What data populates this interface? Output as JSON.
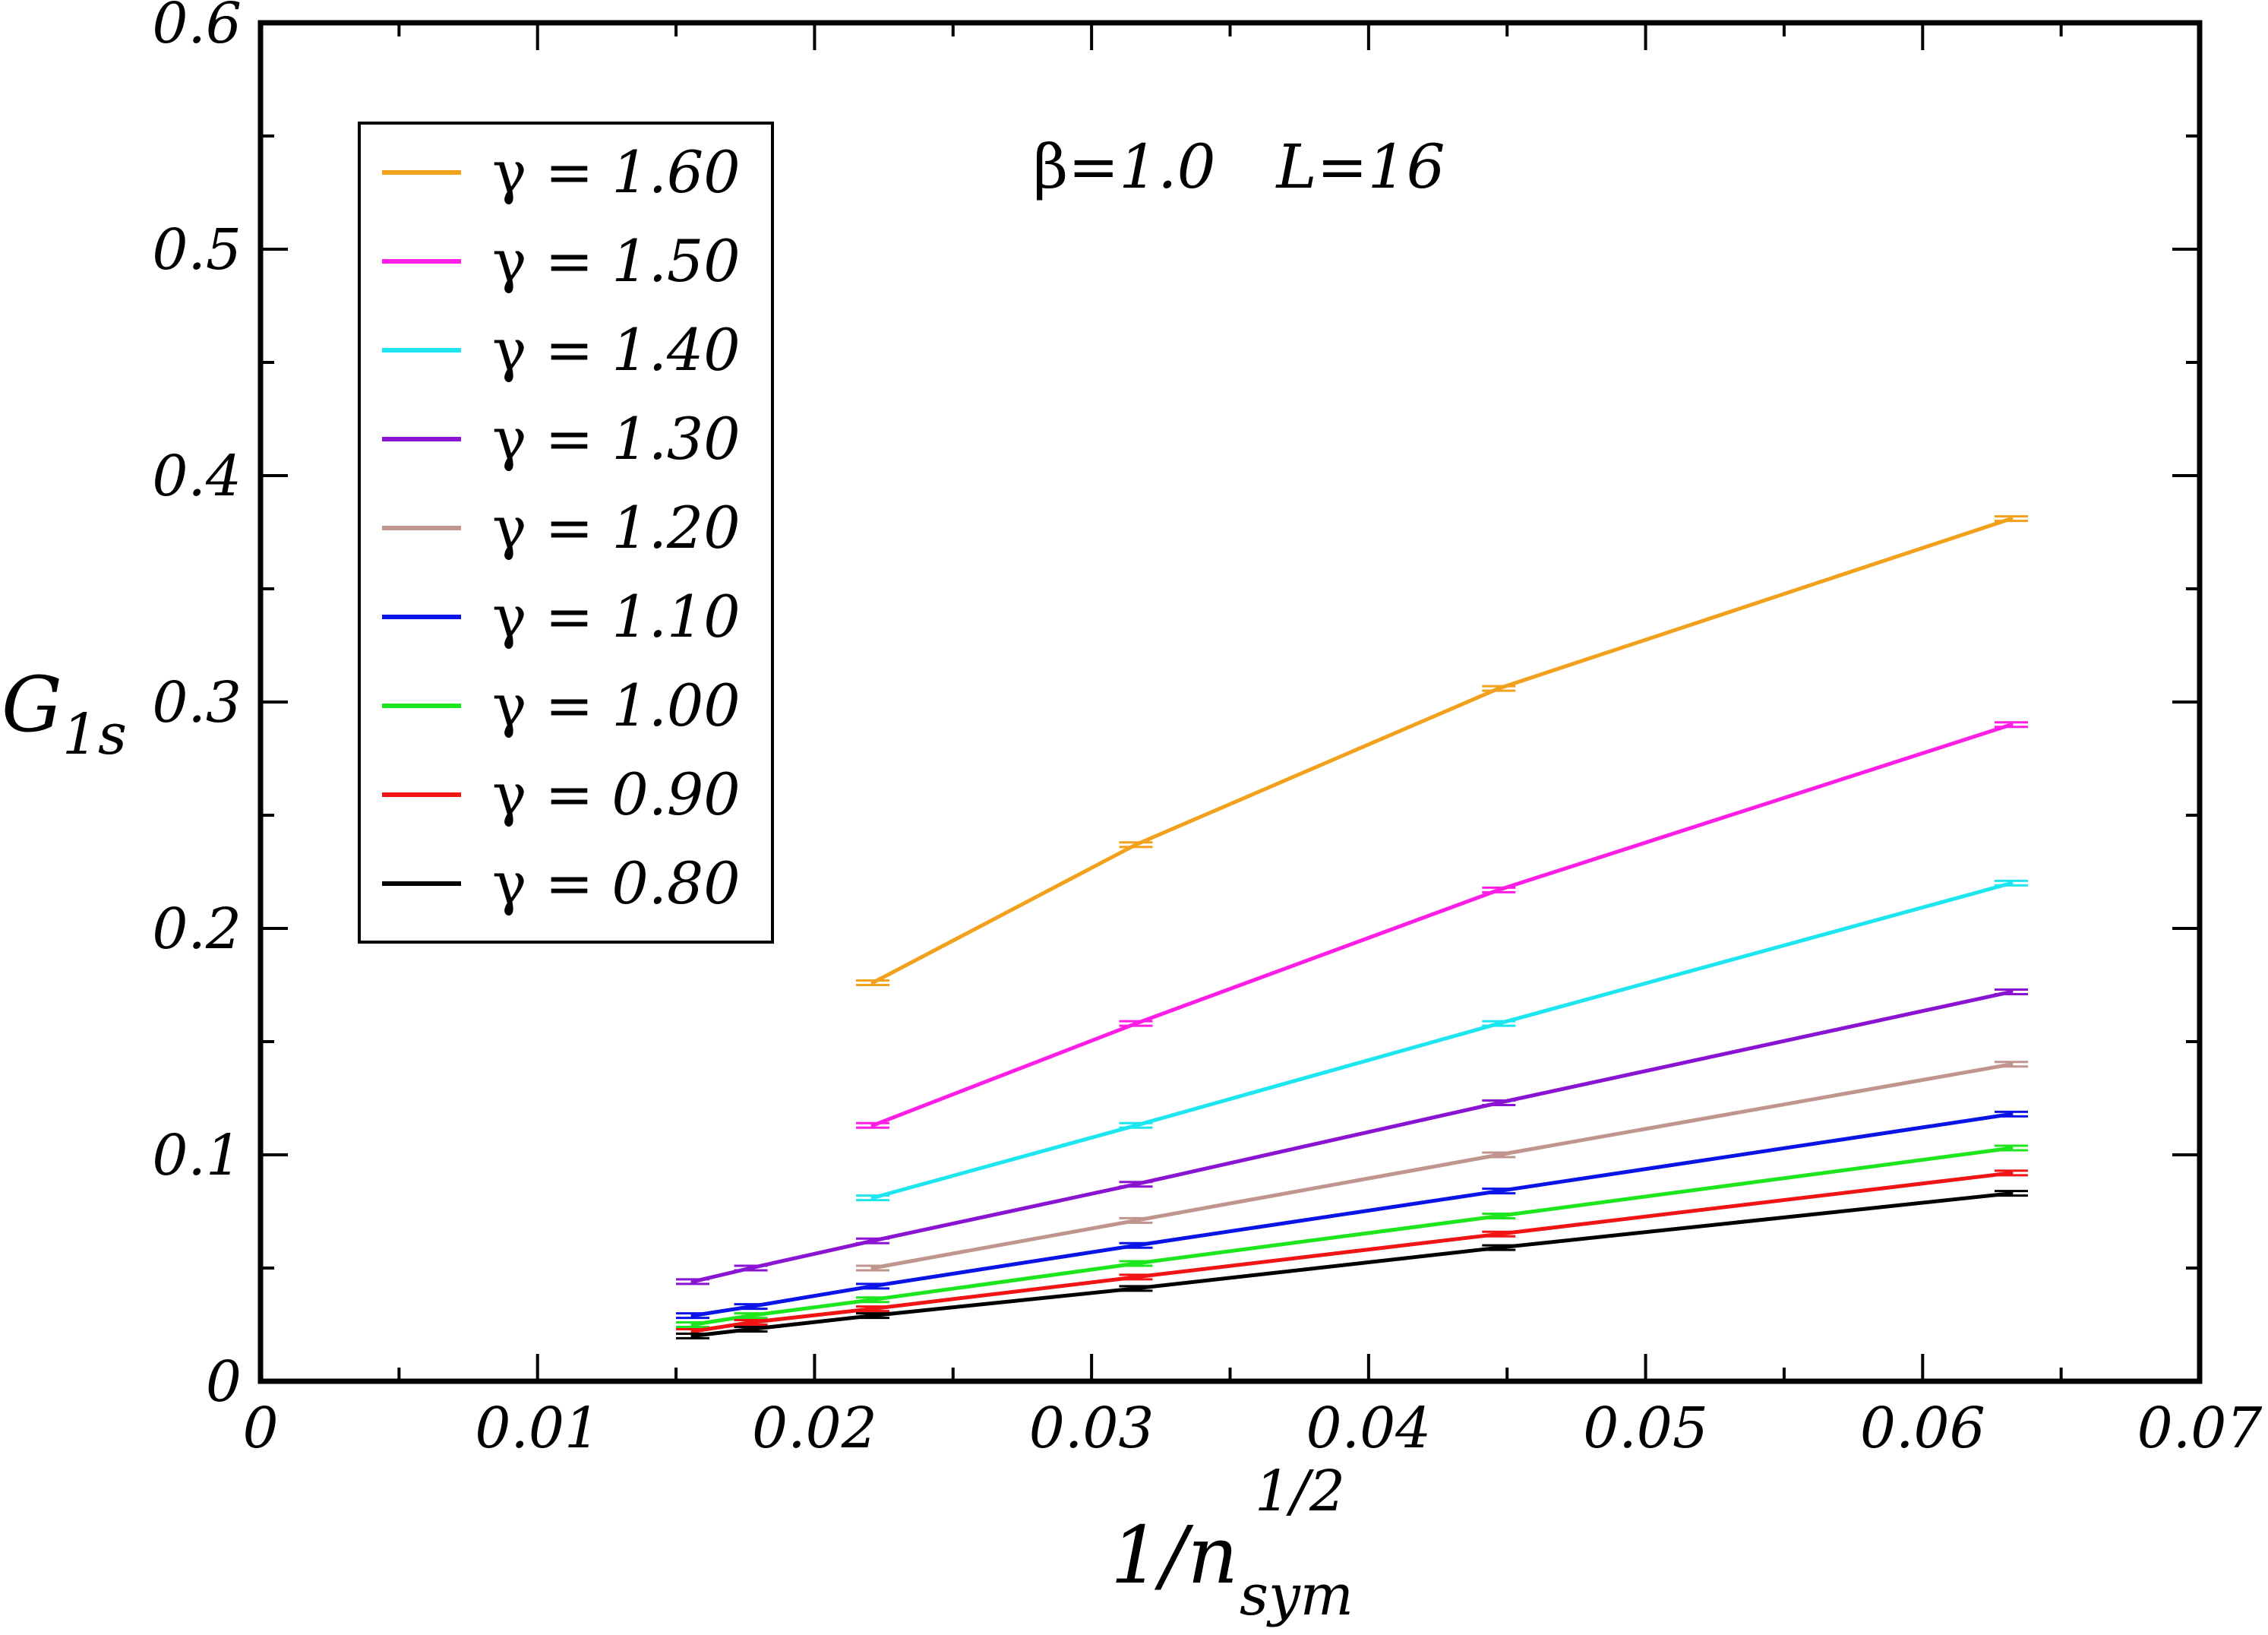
{
  "chart_data": {
    "type": "line",
    "annotation": {
      "beta_label": "β=",
      "beta_value": "1.0",
      "l_label": "L=16"
    },
    "xlabel": {
      "main": "1/n",
      "sup": "1/2",
      "sub": "sym"
    },
    "ylabel": {
      "main": "G",
      "sub": "1s"
    },
    "xlim": [
      0,
      0.07
    ],
    "ylim": [
      0,
      0.6
    ],
    "x_ticks": [
      "0",
      "0.01",
      "0.02",
      "0.03",
      "0.04",
      "0.05",
      "0.06",
      "0.07"
    ],
    "x_tick_values": [
      0,
      0.01,
      0.02,
      0.03,
      0.04,
      0.05,
      0.06,
      0.07
    ],
    "y_ticks": [
      "0",
      "0.1",
      "0.2",
      "0.3",
      "0.4",
      "0.5",
      "0.6"
    ],
    "y_tick_values": [
      0,
      0.1,
      0.2,
      0.3,
      0.4,
      0.5,
      0.6
    ],
    "legend_position": "top-left",
    "series": [
      {
        "name": "γ = 1.60",
        "symbol": "γ = ",
        "value": "1.60",
        "color": "#f2a11c",
        "x": [
          0.0221,
          0.0316,
          0.0447,
          0.0632
        ],
        "y": [
          0.176,
          0.237,
          0.306,
          0.381
        ]
      },
      {
        "name": "γ = 1.50",
        "symbol": "γ = ",
        "value": "1.50",
        "color": "#ff1ee6",
        "x": [
          0.0221,
          0.0316,
          0.0447,
          0.0632
        ],
        "y": [
          0.113,
          0.158,
          0.217,
          0.29
        ]
      },
      {
        "name": "γ = 1.40",
        "symbol": "γ = ",
        "value": "1.40",
        "color": "#1ee6f0",
        "x": [
          0.0221,
          0.0316,
          0.0447,
          0.0632
        ],
        "y": [
          0.081,
          0.113,
          0.158,
          0.22
        ]
      },
      {
        "name": "γ = 1.30",
        "symbol": "γ = ",
        "value": "1.30",
        "color": "#8a14d2",
        "x": [
          0.0156,
          0.0177,
          0.0221,
          0.0316,
          0.0447,
          0.0632
        ],
        "y": [
          0.044,
          0.05,
          0.062,
          0.087,
          0.123,
          0.172
        ]
      },
      {
        "name": "γ = 1.20",
        "symbol": "γ = ",
        "value": "1.20",
        "color": "#bf958e",
        "x": [
          0.0221,
          0.0316,
          0.0447,
          0.0632
        ],
        "y": [
          0.05,
          0.071,
          0.1,
          0.14
        ]
      },
      {
        "name": "γ = 1.10",
        "symbol": "γ = ",
        "value": "1.10",
        "color": "#0a14e6",
        "x": [
          0.0156,
          0.0177,
          0.0221,
          0.0316,
          0.0447,
          0.0632
        ],
        "y": [
          0.029,
          0.033,
          0.042,
          0.06,
          0.084,
          0.118
        ]
      },
      {
        "name": "γ = 1.00",
        "symbol": "γ = ",
        "value": "1.00",
        "color": "#1ee61e",
        "x": [
          0.0156,
          0.0177,
          0.0221,
          0.0316,
          0.0447,
          0.0632
        ],
        "y": [
          0.025,
          0.029,
          0.036,
          0.052,
          0.073,
          0.103
        ]
      },
      {
        "name": "γ = 0.90",
        "symbol": "γ = ",
        "value": "0.90",
        "color": "#f01414",
        "x": [
          0.0156,
          0.0177,
          0.0221,
          0.0316,
          0.0447,
          0.0632
        ],
        "y": [
          0.022,
          0.026,
          0.032,
          0.046,
          0.065,
          0.092
        ]
      },
      {
        "name": "γ = 0.80",
        "symbol": "γ = ",
        "value": "0.80",
        "color": "#000000",
        "x": [
          0.0156,
          0.0177,
          0.0221,
          0.0316,
          0.0447,
          0.0632
        ],
        "y": [
          0.02,
          0.023,
          0.029,
          0.041,
          0.059,
          0.083
        ]
      }
    ]
  }
}
